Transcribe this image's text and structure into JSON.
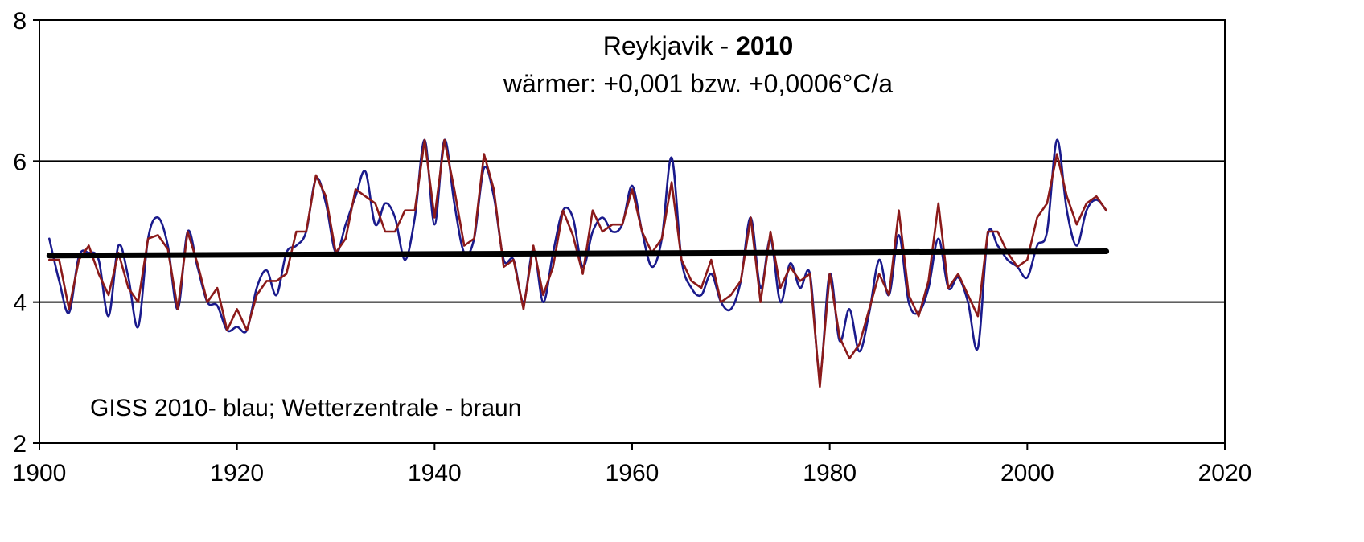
{
  "chart_data": {
    "type": "line",
    "title_prefix": "Reykjavik - ",
    "title_bold": "2010",
    "subtitle": "wärmer: +0,001 bzw. +0,0006°C/a",
    "annotation": "GISS 2010- blau;  Wetterzentrale - braun",
    "xlabel": "",
    "ylabel": "",
    "xlim": [
      1900,
      2020
    ],
    "ylim": [
      2,
      8
    ],
    "x_ticks": [
      1900,
      1920,
      1940,
      1960,
      1980,
      2000,
      2020
    ],
    "y_ticks": [
      2,
      4,
      6,
      8
    ],
    "y_gridlines": [
      4,
      6
    ],
    "grid": "horizontal",
    "legend": "none",
    "series": [
      {
        "color": "#1a1a8c",
        "smooth": true,
        "x": [
          1901,
          1902,
          1903,
          1904,
          1905,
          1906,
          1907,
          1908,
          1909,
          1910,
          1911,
          1912,
          1913,
          1914,
          1915,
          1916,
          1917,
          1918,
          1919,
          1920,
          1921,
          1922,
          1923,
          1924,
          1925,
          1926,
          1927,
          1928,
          1929,
          1930,
          1931,
          1932,
          1933,
          1934,
          1935,
          1936,
          1937,
          1938,
          1939,
          1940,
          1941,
          1942,
          1943,
          1944,
          1945,
          1946,
          1947,
          1948,
          1949,
          1950,
          1951,
          1952,
          1953,
          1954,
          1955,
          1956,
          1957,
          1958,
          1959,
          1960,
          1961,
          1962,
          1963,
          1964,
          1965,
          1966,
          1967,
          1968,
          1969,
          1970,
          1971,
          1972,
          1973,
          1974,
          1975,
          1976,
          1977,
          1978,
          1979,
          1980,
          1981,
          1982,
          1983,
          1984,
          1985,
          1986,
          1987,
          1988,
          1989,
          1990,
          1991,
          1992,
          1993,
          1994,
          1995,
          1996,
          1997,
          1998,
          1999,
          2000,
          2001,
          2002,
          2003,
          2004,
          2005,
          2006,
          2007,
          2008
        ],
        "values": [
          4.9,
          4.3,
          3.85,
          4.65,
          4.7,
          4.6,
          3.8,
          4.8,
          4.35,
          3.65,
          4.9,
          5.2,
          4.8,
          3.9,
          5.0,
          4.5,
          4.0,
          3.95,
          3.6,
          3.65,
          3.6,
          4.2,
          4.45,
          4.1,
          4.7,
          4.8,
          5.0,
          5.75,
          5.4,
          4.7,
          5.1,
          5.5,
          5.85,
          5.1,
          5.4,
          5.2,
          4.6,
          5.2,
          6.3,
          5.1,
          6.3,
          5.4,
          4.7,
          4.9,
          5.9,
          5.5,
          4.6,
          4.6,
          4.0,
          4.75,
          4.0,
          4.7,
          5.3,
          5.2,
          4.5,
          5.0,
          5.2,
          5.0,
          5.1,
          5.65,
          5.0,
          4.5,
          4.9,
          6.05,
          4.6,
          4.2,
          4.1,
          4.4,
          4.0,
          3.9,
          4.3,
          5.2,
          4.2,
          4.9,
          4.0,
          4.55,
          4.2,
          4.4,
          3.0,
          4.4,
          3.45,
          3.9,
          3.3,
          3.85,
          4.6,
          4.1,
          4.95,
          4.0,
          3.85,
          4.2,
          4.9,
          4.2,
          4.35,
          4.0,
          3.35,
          4.95,
          4.8,
          4.6,
          4.5,
          4.35,
          4.8,
          5.0,
          6.3,
          5.3,
          4.8,
          5.3,
          5.45,
          5.3
        ]
      },
      {
        "color": "#8b1a1a",
        "smooth": false,
        "x": [
          1901,
          1902,
          1903,
          1904,
          1905,
          1906,
          1907,
          1908,
          1909,
          1910,
          1911,
          1912,
          1913,
          1914,
          1915,
          1916,
          1917,
          1918,
          1919,
          1920,
          1921,
          1922,
          1923,
          1924,
          1925,
          1926,
          1927,
          1928,
          1929,
          1930,
          1931,
          1932,
          1933,
          1934,
          1935,
          1936,
          1937,
          1938,
          1939,
          1940,
          1941,
          1942,
          1943,
          1944,
          1945,
          1946,
          1947,
          1948,
          1949,
          1950,
          1951,
          1952,
          1953,
          1954,
          1955,
          1956,
          1957,
          1958,
          1959,
          1960,
          1961,
          1962,
          1963,
          1964,
          1965,
          1966,
          1967,
          1968,
          1969,
          1970,
          1971,
          1972,
          1973,
          1974,
          1975,
          1976,
          1977,
          1978,
          1979,
          1980,
          1981,
          1982,
          1983,
          1984,
          1985,
          1986,
          1987,
          1988,
          1989,
          1990,
          1991,
          1992,
          1993,
          1994,
          1995,
          1996,
          1997,
          1998,
          1999,
          2000,
          2001,
          2002,
          2003,
          2004,
          2005,
          2006,
          2007,
          2008
        ],
        "values": [
          4.6,
          4.6,
          3.9,
          4.6,
          4.8,
          4.4,
          4.1,
          4.7,
          4.2,
          4.0,
          4.9,
          4.95,
          4.75,
          3.9,
          5.0,
          4.55,
          4.0,
          4.2,
          3.6,
          3.9,
          3.6,
          4.1,
          4.3,
          4.3,
          4.4,
          5.0,
          5.0,
          5.8,
          5.5,
          4.7,
          4.9,
          5.6,
          5.5,
          5.4,
          5.0,
          5.0,
          5.3,
          5.3,
          6.3,
          5.2,
          6.3,
          5.6,
          4.8,
          4.9,
          6.1,
          5.6,
          4.5,
          4.6,
          3.9,
          4.8,
          4.1,
          4.5,
          5.3,
          4.95,
          4.4,
          5.3,
          5.0,
          5.1,
          5.1,
          5.6,
          5.0,
          4.7,
          4.9,
          5.7,
          4.6,
          4.3,
          4.2,
          4.6,
          4.0,
          4.1,
          4.3,
          5.2,
          4.0,
          5.0,
          4.2,
          4.5,
          4.3,
          4.4,
          2.8,
          4.4,
          3.5,
          3.2,
          3.4,
          3.9,
          4.4,
          4.1,
          5.3,
          4.1,
          3.8,
          4.3,
          5.4,
          4.2,
          4.4,
          4.1,
          3.8,
          5.0,
          5.0,
          4.7,
          4.5,
          4.6,
          5.2,
          5.4,
          6.1,
          5.5,
          5.1,
          5.4,
          5.5,
          5.3
        ]
      },
      {
        "color": "#000000",
        "trend": true,
        "x": [
          1901,
          2008
        ],
        "values": [
          4.66,
          4.72
        ]
      }
    ]
  }
}
